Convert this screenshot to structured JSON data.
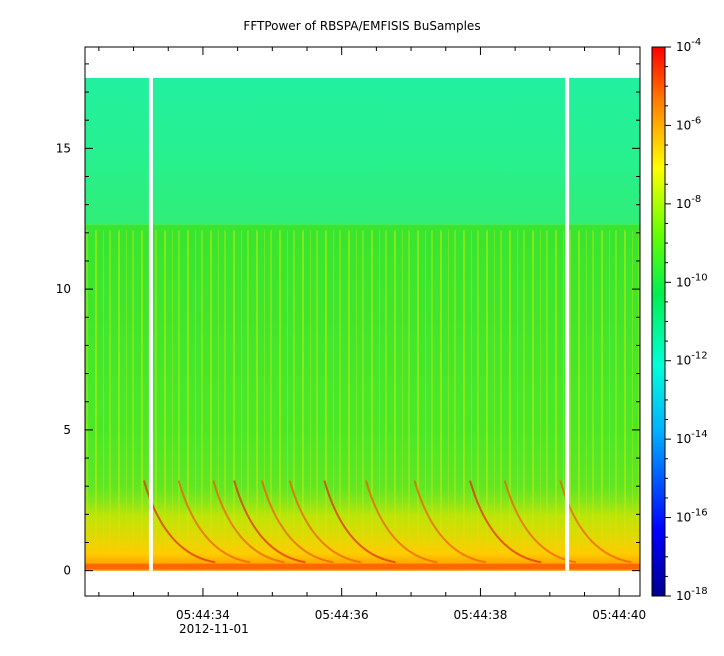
{
  "chart_data": {
    "type": "heatmap",
    "title": "FFTPower of RBSPA/EMFISIS  BuSamples",
    "xlabel": "",
    "ylabel": "",
    "x": {
      "tick_labels": [
        "05:44:34",
        "05:44:36",
        "05:44:38",
        "05:44:40"
      ],
      "tick_seconds": [
        34,
        36,
        38,
        40
      ],
      "date_label": "2012-11-01",
      "range_seconds": [
        32.3,
        40.3
      ]
    },
    "y": {
      "tick_values": [
        0,
        5,
        10,
        15
      ],
      "range": [
        -0.9,
        18.6
      ]
    },
    "colorbar": {
      "scale": "log",
      "range": [
        1e-18,
        0.0001
      ],
      "tick_exponents": [
        -4,
        -6,
        -8,
        -10,
        -12,
        -14,
        -16,
        -18
      ],
      "tick_base": "10"
    },
    "gaps_seconds": [
      33.25,
      39.25
    ],
    "data_extent_y": [
      0,
      17.5
    ],
    "bands": [
      {
        "y_range": [
          12.3,
          17.5
        ],
        "level": "1e-12"
      },
      {
        "y_range": [
          0,
          12.3
        ],
        "level": "1e-10"
      },
      {
        "y_range": [
          0,
          3
        ],
        "level": "1e-8"
      }
    ]
  }
}
